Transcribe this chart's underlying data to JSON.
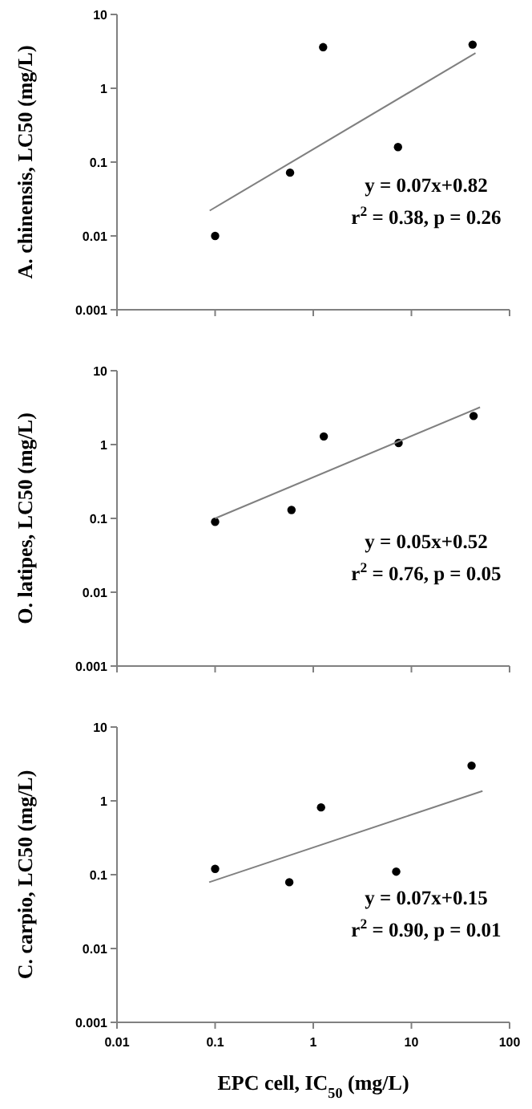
{
  "chart_data": [
    {
      "type": "scatter",
      "ylabel": "A. chinensis, LC50 (mg/L)",
      "log": "xy",
      "marker": "circle",
      "tick_labels": "y",
      "xlim": [
        0.01,
        100
      ],
      "xticks": [
        0.01,
        0.1,
        1,
        10,
        100
      ],
      "ylim": [
        0.001,
        10
      ],
      "yticks": [
        0.001,
        0.01,
        0.1,
        1,
        10
      ],
      "series": [
        {
          "color": "#000000",
          "x": [
            0.1,
            0.58,
            1.26,
            7.3,
            42
          ],
          "values": [
            0.01,
            0.072,
            3.6,
            0.16,
            3.9
          ]
        },
        {
          "type": "line",
          "color": "#808080",
          "marker": "none",
          "x": [
            0.088,
            45
          ],
          "values": [
            0.022,
            3.0
          ]
        }
      ],
      "annotations": [
        "y = 0.07x+0.82",
        "r$^{2}$ = 0.38, p = 0.26"
      ]
    },
    {
      "type": "scatter",
      "ylabel": "O. latipes, LC50 (mg/L)",
      "log": "xy",
      "marker": "circle",
      "tick_labels": "y",
      "xlim": [
        0.01,
        100
      ],
      "xticks": [
        0.01,
        0.1,
        1,
        10,
        100
      ],
      "ylim": [
        0.001,
        10
      ],
      "yticks": [
        0.001,
        0.01,
        0.1,
        1,
        10
      ],
      "series": [
        {
          "color": "#000000",
          "x": [
            0.1,
            0.6,
            1.28,
            7.4,
            43
          ],
          "values": [
            0.09,
            0.13,
            1.29,
            1.05,
            2.44
          ]
        },
        {
          "type": "line",
          "color": "#808080",
          "marker": "none",
          "x": [
            0.1,
            50
          ],
          "values": [
            0.1,
            3.2
          ]
        }
      ],
      "annotations": [
        "y = 0.05x+0.52",
        "r$^{2}$ = 0.76, p = 0.05"
      ]
    },
    {
      "type": "scatter",
      "ylabel": "C. carpio, LC50 (mg/L)",
      "xlabel": "EPC cell, IC$_{50}$ (mg/L)",
      "log": "xy",
      "marker": "circle",
      "xlim": [
        0.01,
        100
      ],
      "xticks": [
        0.01,
        0.1,
        1,
        10,
        100
      ],
      "ylim": [
        0.001,
        10
      ],
      "yticks": [
        0.001,
        0.01,
        0.1,
        1,
        10
      ],
      "series": [
        {
          "color": "#000000",
          "x": [
            0.1,
            0.57,
            1.2,
            7.0,
            41
          ],
          "values": [
            0.12,
            0.079,
            0.815,
            0.11,
            3.0
          ]
        },
        {
          "type": "line",
          "color": "#808080",
          "marker": "none",
          "x": [
            0.087,
            53
          ],
          "values": [
            0.079,
            1.36
          ]
        }
      ],
      "annotations": [
        "y = 0.07x+0.15",
        "r$^{2}$ = 0.90, p = 0.01"
      ]
    }
  ]
}
